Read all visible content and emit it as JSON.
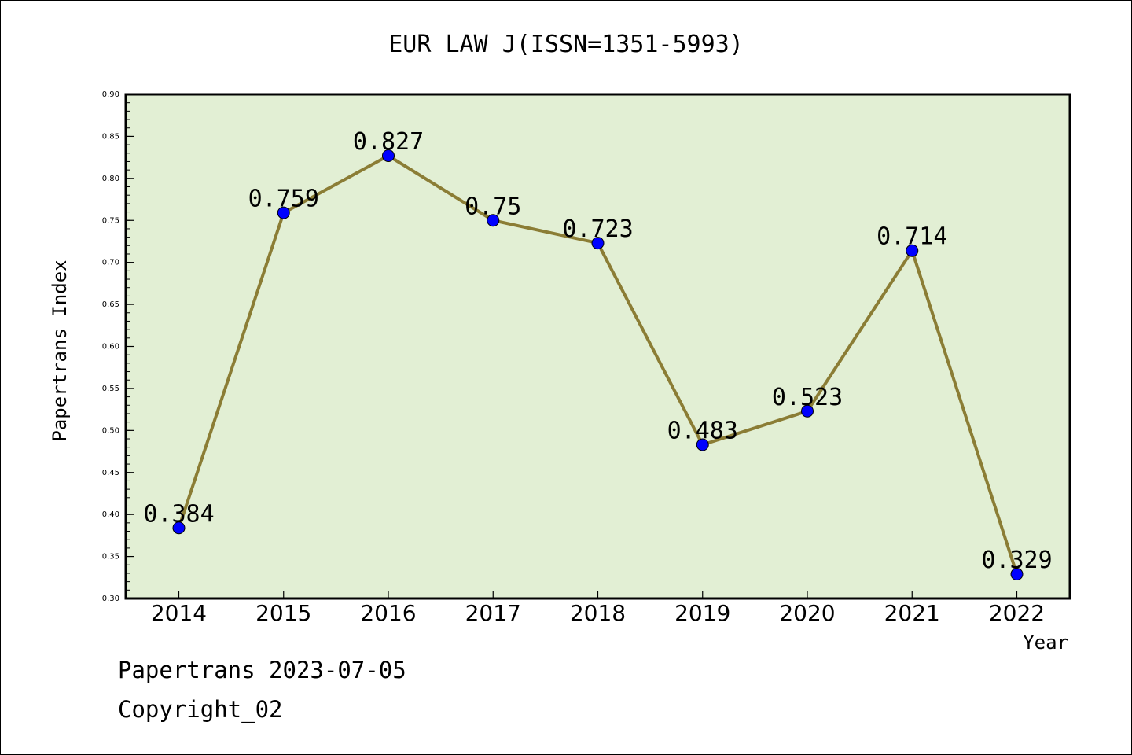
{
  "chart_data": {
    "type": "line",
    "title": "EUR LAW J(ISSN=1351-5993)",
    "xlabel": "Year",
    "ylabel": "Papertrans Index",
    "categories": [
      "2014",
      "2015",
      "2016",
      "2017",
      "2018",
      "2019",
      "2020",
      "2021",
      "2022"
    ],
    "series": [
      {
        "values": [
          0.384,
          0.759,
          0.827,
          0.75,
          0.723,
          0.483,
          0.523,
          0.714,
          0.329
        ],
        "labels": [
          "0.384",
          "0.759",
          "0.827",
          "0.75",
          "0.723",
          "0.483",
          "0.523",
          "0.714",
          "0.329"
        ],
        "line_color": "#8b7d35",
        "marker_color": "#0000ff"
      }
    ],
    "ylim": [
      0.3,
      0.9
    ],
    "yticks": [
      "0.30",
      "0.35",
      "0.40",
      "0.45",
      "0.50",
      "0.55",
      "0.60",
      "0.65",
      "0.70",
      "0.75",
      "0.80",
      "0.85",
      "0.90"
    ],
    "plot_background": "#e2efd4",
    "grid": false,
    "legend": "none"
  },
  "footer": {
    "line1": "Papertrans 2023-07-05",
    "line2": "Copyright_02"
  }
}
